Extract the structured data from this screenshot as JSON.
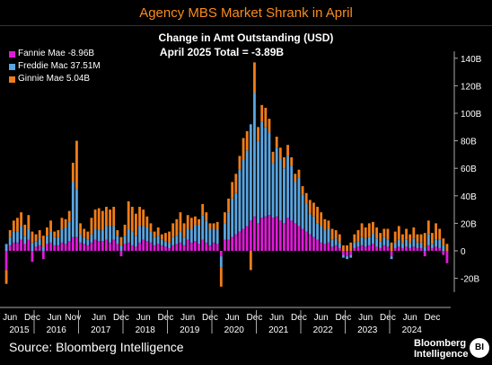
{
  "header": {
    "title": "Agency MBS Market Shrank in April",
    "subtitle": "Change in Amt Outstanding (USD)",
    "subtitle2": "April 2025 Total = -3.89B"
  },
  "footer": {
    "source": "Source: Bloomberg Intelligence",
    "brand_line1": "Bloomberg",
    "brand_line2": "Intelligence",
    "logo": "BI"
  },
  "colors": {
    "fannie": "#e01ad8",
    "freddie": "#5aa5e0",
    "ginnie": "#f07d18",
    "background": "#000000",
    "title": "#fb8b1e"
  },
  "chart_data": {
    "type": "bar",
    "stacked": true,
    "title": "Agency MBS Market Shrank in April",
    "subtitle": "Change in Amt Outstanding (USD)",
    "xlabel": "",
    "ylabel": "",
    "ylim": [
      -30,
      145
    ],
    "y_ticks": [
      -20,
      0,
      20,
      40,
      60,
      80,
      100,
      120,
      140
    ],
    "y_tick_labels": [
      "-20B",
      "0",
      "20B",
      "40B",
      "60B",
      "80B",
      "100B",
      "120B",
      "140B"
    ],
    "y_axis_side": "right",
    "grid": false,
    "legend_position": "top-left",
    "legend": [
      {
        "name": "Fannie Mae",
        "value": "-8.96B",
        "color": "#e01ad8"
      },
      {
        "name": "Freddie Mac",
        "value": "37.51M",
        "color": "#5aa5e0"
      },
      {
        "name": "Ginnie Mae",
        "value": "5.04B",
        "color": "#f07d18"
      }
    ],
    "x_month_labels": [
      "Jun",
      "Dec",
      "Jun",
      "Nov",
      "Jun",
      "Dec",
      "Jun",
      "Dec",
      "Jun",
      "Dec",
      "Jun",
      "Dec",
      "Jun",
      "Dec",
      "Jun",
      "Dec",
      "Jun",
      "Dec",
      "Jun",
      "Dec"
    ],
    "x_year_labels": [
      "2015",
      "2016",
      "2017",
      "2018",
      "2019",
      "2020",
      "2021",
      "2022",
      "2023",
      "2024"
    ],
    "categories": [
      "2015-05",
      "2015-06",
      "2015-07",
      "2015-08",
      "2015-09",
      "2015-10",
      "2015-11",
      "2015-12",
      "2016-01",
      "2016-02",
      "2016-03",
      "2016-04",
      "2016-05",
      "2016-06",
      "2016-07",
      "2016-08",
      "2016-09",
      "2016-10",
      "2016-11",
      "2016-12",
      "2017-01",
      "2017-02",
      "2017-03",
      "2017-04",
      "2017-05",
      "2017-06",
      "2017-07",
      "2017-08",
      "2017-09",
      "2017-10",
      "2017-11",
      "2017-12",
      "2018-01",
      "2018-02",
      "2018-03",
      "2018-04",
      "2018-05",
      "2018-06",
      "2018-07",
      "2018-08",
      "2018-09",
      "2018-10",
      "2018-11",
      "2018-12",
      "2019-01",
      "2019-02",
      "2019-03",
      "2019-04",
      "2019-05",
      "2019-06",
      "2019-07",
      "2019-08",
      "2019-09",
      "2019-10",
      "2019-11",
      "2019-12",
      "2020-01",
      "2020-02",
      "2020-03",
      "2020-04",
      "2020-05",
      "2020-06",
      "2020-07",
      "2020-08",
      "2020-09",
      "2020-10",
      "2020-11",
      "2020-12",
      "2021-01",
      "2021-02",
      "2021-03",
      "2021-04",
      "2021-05",
      "2021-06",
      "2021-07",
      "2021-08",
      "2021-09",
      "2021-10",
      "2021-11",
      "2021-12",
      "2022-01",
      "2022-02",
      "2022-03",
      "2022-04",
      "2022-05",
      "2022-06",
      "2022-07",
      "2022-08",
      "2022-09",
      "2022-10",
      "2022-11",
      "2022-12",
      "2023-01",
      "2023-02",
      "2023-03",
      "2023-04",
      "2023-05",
      "2023-06",
      "2023-07",
      "2023-08",
      "2023-09",
      "2023-10",
      "2023-11",
      "2023-12",
      "2024-01",
      "2024-02",
      "2024-03",
      "2024-04",
      "2024-05",
      "2024-06",
      "2024-07",
      "2024-08",
      "2024-09",
      "2024-10",
      "2024-11",
      "2024-12",
      "2025-01",
      "2025-02",
      "2025-03",
      "2025-04"
    ],
    "series": [
      {
        "name": "Fannie Mae",
        "values": [
          -14,
          4,
          6,
          6,
          8,
          5,
          8,
          -8,
          3,
          4,
          -6,
          5,
          6,
          4,
          4,
          6,
          5,
          7,
          10,
          10,
          6,
          5,
          4,
          6,
          8,
          7,
          7,
          8,
          6,
          8,
          5,
          -4,
          5,
          6,
          4,
          3,
          6,
          8,
          7,
          6,
          4,
          5,
          4,
          3,
          2,
          4,
          5,
          6,
          4,
          8,
          6,
          7,
          5,
          8,
          6,
          4,
          6,
          5,
          -4,
          8,
          8,
          10,
          12,
          14,
          16,
          18,
          22,
          25,
          20,
          24,
          25,
          26,
          24,
          25,
          22,
          20,
          24,
          22,
          20,
          18,
          16,
          14,
          12,
          10,
          8,
          6,
          5,
          6,
          3,
          4,
          2,
          -3,
          -4,
          -3,
          2,
          3,
          4,
          3,
          4,
          5,
          3,
          2,
          4,
          3,
          -4,
          2,
          3,
          2,
          3,
          2,
          3,
          2,
          2,
          -4,
          4,
          2,
          3,
          2,
          -3,
          -9
        ]
      },
      {
        "name": "Freddie Mac",
        "values": [
          5,
          6,
          8,
          8,
          10,
          6,
          8,
          6,
          4,
          5,
          3,
          6,
          8,
          6,
          6,
          10,
          12,
          14,
          40,
          35,
          6,
          5,
          4,
          6,
          8,
          8,
          8,
          10,
          12,
          10,
          6,
          4,
          6,
          10,
          10,
          8,
          12,
          10,
          10,
          8,
          6,
          6,
          4,
          4,
          4,
          6,
          6,
          8,
          6,
          8,
          10,
          12,
          14,
          18,
          16,
          12,
          10,
          10,
          -8,
          12,
          20,
          28,
          30,
          45,
          50,
          55,
          70,
          90,
          60,
          70,
          65,
          60,
          40,
          50,
          45,
          40,
          45,
          40,
          30,
          35,
          25,
          20,
          15,
          15,
          12,
          12,
          10,
          10,
          5,
          5,
          4,
          -2,
          -2,
          -2,
          4,
          4,
          6,
          6,
          6,
          8,
          6,
          5,
          6,
          5,
          -2,
          4,
          5,
          4,
          5,
          4,
          6,
          4,
          4,
          3,
          8,
          3,
          5,
          6,
          4,
          0.04
        ]
      },
      {
        "name": "Ginnie Mae",
        "values": [
          -10,
          5,
          8,
          10,
          10,
          8,
          10,
          8,
          5,
          6,
          8,
          6,
          8,
          4,
          5,
          8,
          6,
          8,
          14,
          35,
          8,
          6,
          6,
          12,
          14,
          16,
          14,
          14,
          12,
          14,
          4,
          6,
          8,
          20,
          18,
          16,
          14,
          12,
          8,
          6,
          4,
          6,
          4,
          6,
          8,
          10,
          12,
          14,
          10,
          10,
          8,
          6,
          4,
          8,
          6,
          4,
          4,
          6,
          -14,
          8,
          10,
          12,
          14,
          10,
          16,
          14,
          -14,
          22,
          10,
          12,
          14,
          10,
          8,
          8,
          8,
          8,
          8,
          6,
          6,
          6,
          6,
          8,
          10,
          10,
          12,
          10,
          8,
          6,
          8,
          6,
          6,
          4,
          4,
          6,
          6,
          8,
          10,
          8,
          10,
          8,
          8,
          6,
          6,
          8,
          6,
          8,
          10,
          6,
          8,
          6,
          8,
          6,
          6,
          10,
          10,
          8,
          12,
          8,
          5,
          5.04
        ]
      }
    ]
  }
}
